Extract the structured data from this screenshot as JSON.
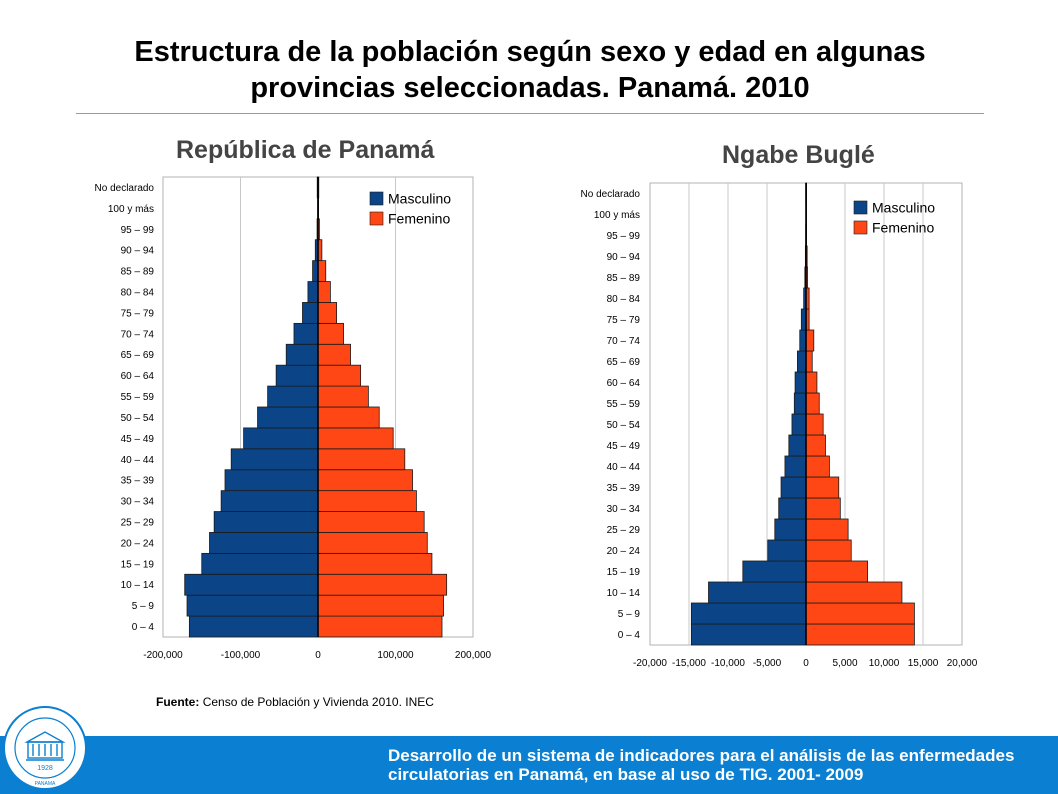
{
  "slide": {
    "title": "Estructura de la población según sexo y edad en algunas provincias seleccionadas. Panamá. 2010",
    "source_label": "Fuente:",
    "source_text": "Censo de Población y Vivienda  2010. INEC",
    "footer": "Desarrollo de un sistema de indicadores para el análisis de las enfermedades circulatorias en Panamá, en base al uso de TIG. 2001- 2009",
    "seal_year": "1928",
    "seal_place": "PANAMA"
  },
  "colors": {
    "male": "#0b4588",
    "female": "#ff4715",
    "footer": "#0b7fd1",
    "grid": "#c8c8c8"
  },
  "chart_data": [
    {
      "type": "bar",
      "orientation": "horizontal-pyramid",
      "title": "República de Panamá",
      "categories": [
        "0 – 4",
        "5 – 9",
        "10 – 14",
        "15 – 19",
        "20 – 24",
        "25 – 29",
        "30 – 34",
        "35 – 39",
        "40 – 44",
        "45 – 49",
        "50 – 54",
        "55 – 59",
        "60 – 64",
        "65 – 69",
        "70 – 74",
        "75 – 79",
        "80 – 84",
        "85 – 89",
        "90 – 94",
        "95 – 99",
        "100 y más",
        "No declarado"
      ],
      "series": [
        {
          "name": "Masculino",
          "values": [
            -166000,
            -169000,
            -172000,
            -150000,
            -140000,
            -134000,
            -125000,
            -120000,
            -112000,
            -96000,
            -78000,
            -65000,
            -54000,
            -41000,
            -31000,
            -20000,
            -13000,
            -7000,
            -3500,
            -1200,
            -400,
            -1000
          ]
        },
        {
          "name": "Femenino",
          "values": [
            160000,
            162000,
            166000,
            147000,
            141000,
            137000,
            127000,
            122000,
            112000,
            97000,
            79000,
            65000,
            55000,
            42000,
            33000,
            24000,
            16000,
            10000,
            5000,
            1800,
            600,
            1000
          ]
        }
      ],
      "xlim": [
        -200000,
        200000
      ],
      "xticks": [
        "-200,000",
        "-100,000",
        "0",
        "100,000",
        "200,000"
      ],
      "legend": "top-right",
      "grid": true
    },
    {
      "type": "bar",
      "orientation": "horizontal-pyramid",
      "title": "Ngabe Buglé",
      "categories": [
        "0 – 4",
        "5 – 9",
        "10 – 14",
        "15 – 19",
        "20 – 24",
        "25 – 29",
        "30 – 34",
        "35 – 39",
        "40 – 44",
        "45 – 49",
        "50 – 54",
        "55 – 59",
        "60 – 64",
        "65 – 69",
        "70 – 74",
        "75 – 79",
        "80 – 84",
        "85 – 89",
        "90 – 94",
        "95 – 99",
        "100 y más",
        "No declarado"
      ],
      "series": [
        {
          "name": "Masculino",
          "values": [
            -14700,
            -14700,
            -12500,
            -8100,
            -4900,
            -4000,
            -3500,
            -3200,
            -2700,
            -2200,
            -1800,
            -1500,
            -1400,
            -1100,
            -800,
            -600,
            -300,
            -150,
            -80,
            -30,
            -10,
            -20
          ]
        },
        {
          "name": "Femenino",
          "values": [
            13900,
            13900,
            12300,
            7900,
            5800,
            5400,
            4400,
            4200,
            3000,
            2500,
            2200,
            1700,
            1400,
            800,
            1000,
            400,
            400,
            200,
            150,
            40,
            15,
            20
          ]
        }
      ],
      "xlim": [
        -20000,
        20000
      ],
      "xticks": [
        "-20,000",
        "-15,000",
        "-10,000",
        "-5,000",
        "0",
        "5,000",
        "10,000",
        "15,000",
        "20,000"
      ],
      "legend": "top-right",
      "grid": true
    }
  ]
}
